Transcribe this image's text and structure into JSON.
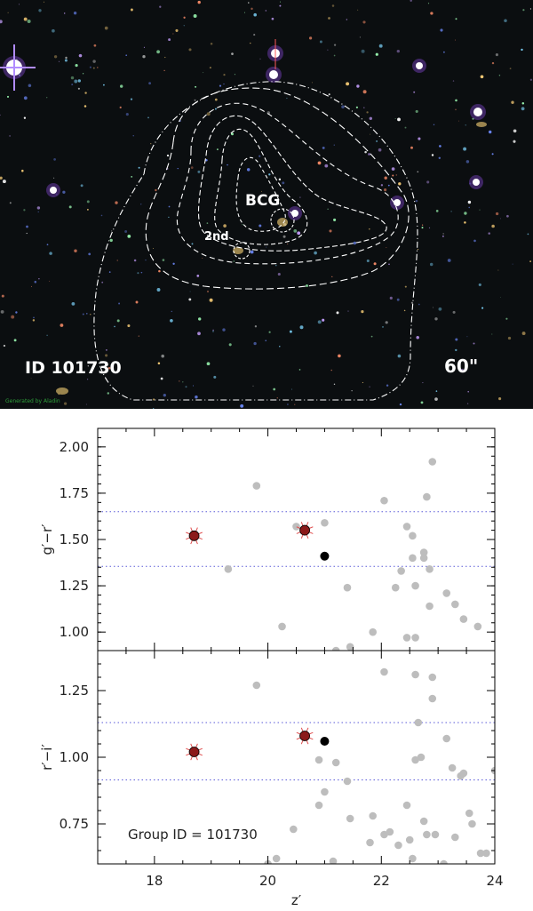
{
  "image_panel": {
    "field_label": "ID 101730",
    "scale_label": "60\"",
    "bcg_label": "BCG",
    "second_label": "2nd",
    "credit_text": "Generated by Aladin",
    "colors": {
      "background": "#0b0e10",
      "contour": "#ffffff",
      "text": "#ffffff"
    }
  },
  "chart_data": [
    {
      "type": "scatter",
      "panel": "top",
      "title": "",
      "xlabel": "",
      "ylabel": "g′−r′",
      "xlim": [
        17,
        24
      ],
      "ylim": [
        0.9,
        2.1
      ],
      "yticks": [
        "2.00",
        "1.75",
        "1.50",
        "1.25",
        "1.00"
      ],
      "ytick_values": [
        2.0,
        1.75,
        1.5,
        1.25,
        1.0
      ],
      "grid": false,
      "reference_lines": [
        1.65,
        1.355
      ],
      "series": [
        {
          "role": "background",
          "color": "#bdbdbd",
          "points": [
            [
              19.8,
              1.79
            ],
            [
              19.3,
              1.34
            ],
            [
              20.25,
              1.03
            ],
            [
              20.5,
              1.57
            ],
            [
              21.0,
              1.59
            ],
            [
              21.4,
              1.24
            ],
            [
              21.2,
              0.9
            ],
            [
              21.45,
              0.92
            ],
            [
              21.85,
              1.0
            ],
            [
              22.05,
              1.71
            ],
            [
              22.25,
              1.24
            ],
            [
              22.35,
              1.33
            ],
            [
              22.45,
              1.57
            ],
            [
              22.55,
              1.52
            ],
            [
              22.55,
              1.4
            ],
            [
              22.6,
              1.25
            ],
            [
              22.45,
              0.97
            ],
            [
              22.6,
              0.97
            ],
            [
              22.75,
              1.43
            ],
            [
              22.8,
              1.73
            ],
            [
              22.9,
              1.92
            ],
            [
              22.85,
              1.34
            ],
            [
              22.85,
              1.14
            ],
            [
              22.75,
              1.4
            ],
            [
              23.15,
              1.21
            ],
            [
              23.3,
              1.15
            ],
            [
              23.45,
              1.07
            ],
            [
              23.7,
              1.03
            ]
          ]
        },
        {
          "role": "highlight",
          "color": "#000000",
          "points": [
            [
              21.0,
              1.41
            ]
          ]
        },
        {
          "role": "bcg",
          "color": "#8b1a1a",
          "points": [
            [
              18.7,
              1.52
            ],
            [
              20.65,
              1.55
            ]
          ]
        }
      ]
    },
    {
      "type": "scatter",
      "panel": "bottom",
      "title": "",
      "xlabel": "z′",
      "ylabel": "r′−i′",
      "xlim": [
        17,
        24
      ],
      "ylim": [
        0.6,
        1.4
      ],
      "xticks": [
        "18",
        "20",
        "22",
        "24"
      ],
      "xtick_values": [
        18,
        20,
        22,
        24
      ],
      "yticks": [
        "1.25",
        "1.00",
        "0.75"
      ],
      "ytick_values": [
        1.25,
        1.0,
        0.75
      ],
      "grid": false,
      "reference_lines": [
        1.13,
        0.915
      ],
      "annotation": "Group ID = 101730",
      "series": [
        {
          "role": "background",
          "color": "#bdbdbd",
          "points": [
            [
              19.8,
              1.27
            ],
            [
              20.15,
              0.62
            ],
            [
              20.0,
              0.6
            ],
            [
              20.45,
              0.73
            ],
            [
              20.9,
              0.99
            ],
            [
              21.0,
              0.87
            ],
            [
              20.9,
              0.82
            ],
            [
              21.15,
              0.61
            ],
            [
              21.2,
              0.98
            ],
            [
              21.4,
              0.91
            ],
            [
              21.45,
              0.77
            ],
            [
              21.8,
              0.68
            ],
            [
              21.85,
              0.78
            ],
            [
              22.05,
              1.32
            ],
            [
              22.05,
              0.71
            ],
            [
              22.15,
              0.72
            ],
            [
              22.3,
              0.67
            ],
            [
              22.45,
              0.82
            ],
            [
              22.5,
              0.69
            ],
            [
              22.55,
              0.62
            ],
            [
              22.6,
              1.31
            ],
            [
              22.6,
              0.99
            ],
            [
              22.65,
              1.13
            ],
            [
              22.7,
              1.0
            ],
            [
              22.75,
              0.76
            ],
            [
              22.8,
              0.71
            ],
            [
              22.9,
              1.3
            ],
            [
              22.9,
              1.22
            ],
            [
              22.95,
              0.71
            ],
            [
              23.1,
              0.6
            ],
            [
              23.15,
              1.07
            ],
            [
              23.25,
              0.96
            ],
            [
              23.3,
              0.7
            ],
            [
              23.4,
              0.93
            ],
            [
              23.45,
              0.94
            ],
            [
              23.55,
              0.79
            ],
            [
              23.6,
              0.75
            ],
            [
              23.75,
              0.64
            ],
            [
              23.85,
              0.64
            ],
            [
              24.0,
              0.95
            ]
          ]
        },
        {
          "role": "highlight",
          "color": "#000000",
          "points": [
            [
              21.0,
              1.06
            ]
          ]
        },
        {
          "role": "bcg",
          "color": "#8b1a1a",
          "points": [
            [
              18.7,
              1.02
            ],
            [
              20.65,
              1.08
            ]
          ]
        }
      ]
    }
  ]
}
